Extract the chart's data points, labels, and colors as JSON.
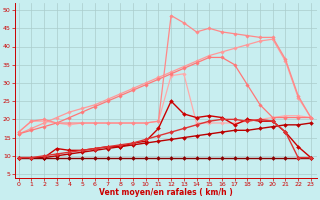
{
  "bg_color": "#c8eef0",
  "grid_color": "#aacccc",
  "xlabel": "Vent moyen/en rafales ( km/h )",
  "xlabel_color": "#cc0000",
  "tick_color": "#cc0000",
  "x_ticks": [
    0,
    1,
    2,
    3,
    4,
    5,
    6,
    7,
    8,
    9,
    10,
    11,
    12,
    13,
    14,
    15,
    16,
    17,
    18,
    19,
    20,
    21,
    22,
    23
  ],
  "y_ticks": [
    5,
    10,
    15,
    20,
    25,
    30,
    35,
    40,
    45,
    50
  ],
  "ylim": [
    4,
    52
  ],
  "xlim": [
    -0.3,
    23.5
  ],
  "series": [
    {
      "color": "#ffaaaa",
      "linewidth": 0.9,
      "marker": "D",
      "markersize": 1.8,
      "y": [
        16.5,
        19.5,
        19.5,
        19.0,
        18.5,
        19.0,
        19.0,
        19.0,
        19.0,
        19.0,
        19.0,
        19.5,
        32.0,
        32.5,
        19.0,
        19.0,
        19.0,
        19.0,
        19.5,
        20.0,
        20.5,
        21.0,
        21.0,
        20.5
      ]
    },
    {
      "color": "#ff9999",
      "linewidth": 0.9,
      "marker": "D",
      "markersize": 1.8,
      "y": [
        16.0,
        17.5,
        19.0,
        20.5,
        22.0,
        23.0,
        24.0,
        25.5,
        27.0,
        28.5,
        30.0,
        31.5,
        33.0,
        34.5,
        36.0,
        37.5,
        38.5,
        39.5,
        40.5,
        41.5,
        42.0,
        36.0,
        26.0,
        20.5
      ]
    },
    {
      "color": "#ff7777",
      "linewidth": 0.9,
      "marker": "D",
      "markersize": 1.8,
      "y": [
        16.0,
        17.0,
        18.0,
        19.0,
        20.5,
        22.0,
        23.5,
        25.0,
        26.5,
        28.0,
        29.5,
        31.0,
        32.5,
        34.0,
        35.5,
        37.0,
        37.0,
        35.0,
        29.5,
        24.0,
        20.5,
        20.5,
        20.5,
        20.5
      ]
    },
    {
      "color": "#ff8888",
      "linewidth": 0.9,
      "marker": "D",
      "markersize": 1.8,
      "y": [
        16.5,
        19.5,
        20.0,
        19.0,
        19.0,
        19.0,
        19.0,
        19.0,
        19.0,
        19.0,
        19.0,
        19.5,
        48.5,
        46.5,
        44.0,
        45.0,
        44.0,
        43.5,
        43.0,
        42.5,
        42.5,
        36.5,
        26.5,
        20.5
      ]
    },
    {
      "comment": "dark red spiky - peaks around x=12 ~25, x=15 ~21, x=16 ~20.5, ends ~9.5",
      "color": "#cc0000",
      "linewidth": 1.0,
      "marker": "D",
      "markersize": 2.0,
      "y": [
        9.5,
        9.5,
        9.5,
        12.0,
        11.5,
        11.5,
        12.0,
        12.5,
        12.5,
        13.5,
        14.0,
        17.5,
        25.0,
        21.5,
        20.5,
        21.0,
        20.5,
        18.5,
        20.0,
        19.5,
        19.5,
        16.5,
        12.5,
        9.5
      ]
    },
    {
      "color": "#bb0000",
      "linewidth": 1.0,
      "marker": "D",
      "markersize": 2.0,
      "y": [
        9.5,
        9.5,
        9.5,
        10.0,
        10.5,
        11.0,
        11.5,
        12.0,
        12.5,
        13.0,
        13.5,
        14.0,
        14.5,
        15.0,
        15.5,
        16.0,
        16.5,
        17.0,
        17.0,
        17.5,
        18.0,
        18.5,
        18.5,
        19.0
      ]
    },
    {
      "color": "#880000",
      "linewidth": 1.0,
      "marker": "D",
      "markersize": 2.0,
      "y": [
        9.5,
        9.5,
        9.5,
        9.5,
        9.5,
        9.5,
        9.5,
        9.5,
        9.5,
        9.5,
        9.5,
        9.5,
        9.5,
        9.5,
        9.5,
        9.5,
        9.5,
        9.5,
        9.5,
        9.5,
        9.5,
        9.5,
        9.5,
        9.5
      ]
    },
    {
      "color": "#dd3333",
      "linewidth": 1.0,
      "marker": "D",
      "markersize": 2.0,
      "y": [
        9.5,
        9.5,
        10.0,
        10.5,
        11.0,
        11.5,
        12.0,
        12.5,
        13.0,
        13.5,
        14.5,
        15.5,
        16.5,
        17.5,
        18.5,
        19.5,
        20.0,
        20.0,
        19.5,
        20.0,
        19.5,
        16.5,
        9.5,
        9.5
      ]
    }
  ]
}
